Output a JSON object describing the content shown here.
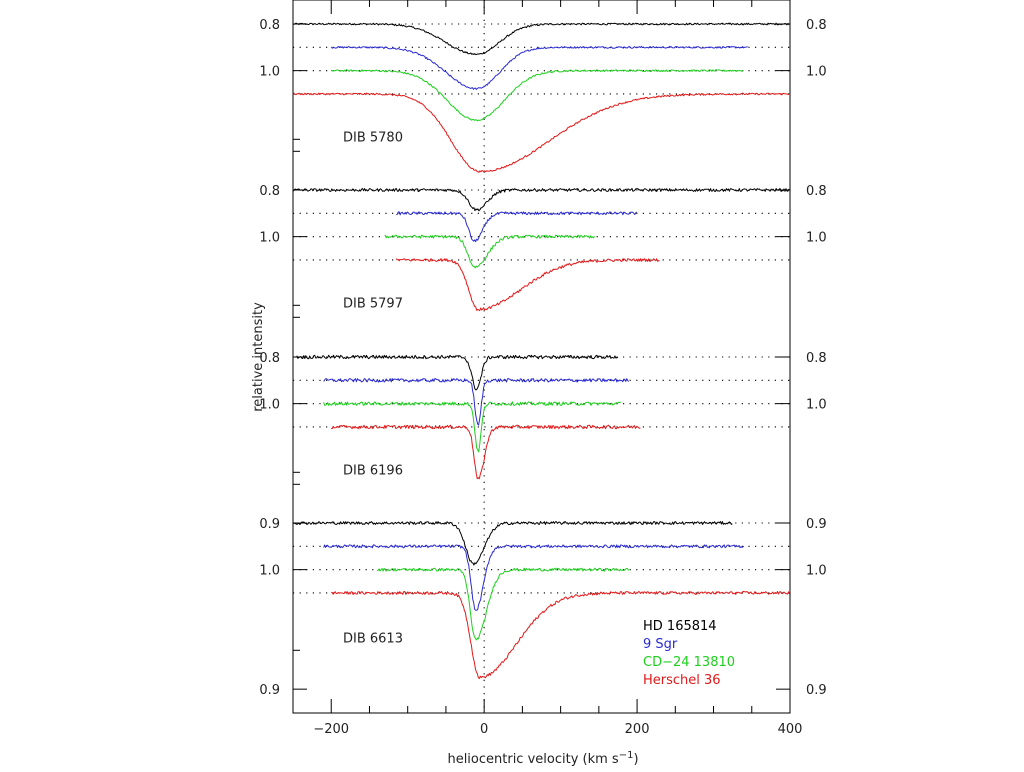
{
  "chart_data": {
    "type": "line",
    "xlabel": "heliocentric velocity (km s",
    "xlabel_superscript": "−1",
    "xlabel_close": ")",
    "ylabel": "relative intensity",
    "xlim": [
      -250,
      400
    ],
    "x_ticks": [
      -200,
      0,
      200,
      400
    ],
    "x_tick_labels": [
      "−200",
      "0",
      "200",
      "400"
    ],
    "x_zero_reference": "dotted vertical line at 0 km/s",
    "series_names": [
      "HD 165814",
      "9 Sgr",
      "CD−24 13810",
      "Herschel 36"
    ],
    "series_colors": [
      "#000000",
      "#2a2ad4",
      "#1ecf1e",
      "#e31818"
    ],
    "legend_position": "lower-right of bottom panel",
    "panels": [
      {
        "label": "DIB 5780",
        "y_tick_labels": [
          "0.8",
          "1.0"
        ],
        "continuum": 1.0,
        "series": [
          {
            "name": "HD 165814",
            "offset": 0.0,
            "x_range": [
              -250,
              400
            ],
            "lines": [
              {
                "center": -10,
                "depth": 0.052,
                "wl": 40,
                "wr": 30
              }
            ]
          },
          {
            "name": "9 Sgr",
            "offset": -0.04,
            "x_range": [
              -200,
              345
            ],
            "lines": [
              {
                "center": -10,
                "depth": 0.071,
                "wl": 40,
                "wr": 30
              }
            ]
          },
          {
            "name": "CD−24 13810",
            "offset": -0.08,
            "x_range": [
              -200,
              340
            ],
            "lines": [
              {
                "center": -10,
                "depth": 0.085,
                "wl": 38,
                "wr": 36
              }
            ]
          },
          {
            "name": "Herschel 36",
            "offset": -0.12,
            "x_range": [
              -250,
              400
            ],
            "lines": [
              {
                "center": -5,
                "depth": 0.133,
                "wl": 38,
                "wr": 90
              }
            ]
          }
        ]
      },
      {
        "label": "DIB 5797",
        "y_tick_labels": [
          "0.8",
          "1.0"
        ],
        "continuum": 1.0,
        "series": [
          {
            "name": "HD 165814",
            "offset": 0.0,
            "x_range": [
              -250,
              400
            ],
            "lines": [
              {
                "center": -10,
                "depth": 0.034,
                "wl": 10,
                "wr": 14
              }
            ]
          },
          {
            "name": "9 Sgr",
            "offset": -0.04,
            "x_range": [
              -115,
              200
            ],
            "lines": [
              {
                "center": -13,
                "depth": 0.048,
                "wl": 7,
                "wr": 11
              }
            ]
          },
          {
            "name": "CD−24 13810",
            "offset": -0.08,
            "x_range": [
              -130,
              145
            ],
            "lines": [
              {
                "center": -12,
                "depth": 0.052,
                "wl": 9,
                "wr": 16
              }
            ]
          },
          {
            "name": "Herschel 36",
            "offset": -0.12,
            "x_range": [
              -115,
              230
            ],
            "lines": [
              {
                "center": -8,
                "depth": 0.085,
                "wl": 12,
                "wr": 55
              }
            ]
          }
        ]
      },
      {
        "label": "DIB 6196",
        "y_tick_labels": [
          "0.8",
          "1.0"
        ],
        "continuum": 1.0,
        "series": [
          {
            "name": "HD 165814",
            "offset": 0.0,
            "x_range": [
              -245,
              175
            ],
            "lines": [
              {
                "center": -10,
                "depth": 0.055,
                "wl": 6,
                "wr": 6
              }
            ]
          },
          {
            "name": "9 Sgr",
            "offset": -0.04,
            "x_range": [
              -210,
              190
            ],
            "lines": [
              {
                "center": -8,
                "depth": 0.078,
                "wl": 4,
                "wr": 4
              }
            ]
          },
          {
            "name": "CD−24 13810",
            "offset": -0.08,
            "x_range": [
              -210,
              180
            ],
            "lines": [
              {
                "center": -8,
                "depth": 0.082,
                "wl": 4,
                "wr": 4
              }
            ]
          },
          {
            "name": "Herschel 36",
            "offset": -0.12,
            "x_range": [
              -200,
              205
            ],
            "lines": [
              {
                "center": -8,
                "depth": 0.09,
                "wl": 5,
                "wr": 8
              }
            ]
          }
        ]
      },
      {
        "label": "DIB 6613",
        "y_tick_labels": [
          "0.9",
          "1.0",
          "0.9"
        ],
        "continuum": 1.0,
        "series": [
          {
            "name": "HD 165814",
            "offset": 0.0,
            "x_range": [
              -250,
              325
            ],
            "lines": [
              {
                "center": -14,
                "depth": 0.07,
                "wl": 10,
                "wr": 14
              }
            ]
          },
          {
            "name": "9 Sgr",
            "offset": -0.04,
            "x_range": [
              -210,
              340
            ],
            "lines": [
              {
                "center": -11,
                "depth": 0.11,
                "wl": 6,
                "wr": 10
              }
            ]
          },
          {
            "name": "CD−24 13810",
            "offset": -0.08,
            "x_range": [
              -140,
              190
            ],
            "lines": [
              {
                "center": -11,
                "depth": 0.12,
                "wl": 7,
                "wr": 14
              }
            ]
          },
          {
            "name": "Herschel 36",
            "offset": -0.12,
            "x_range": [
              -200,
              400
            ],
            "lines": [
              {
                "center": -6,
                "depth": 0.145,
                "wl": 11,
                "wr": 48
              }
            ]
          }
        ]
      }
    ]
  }
}
